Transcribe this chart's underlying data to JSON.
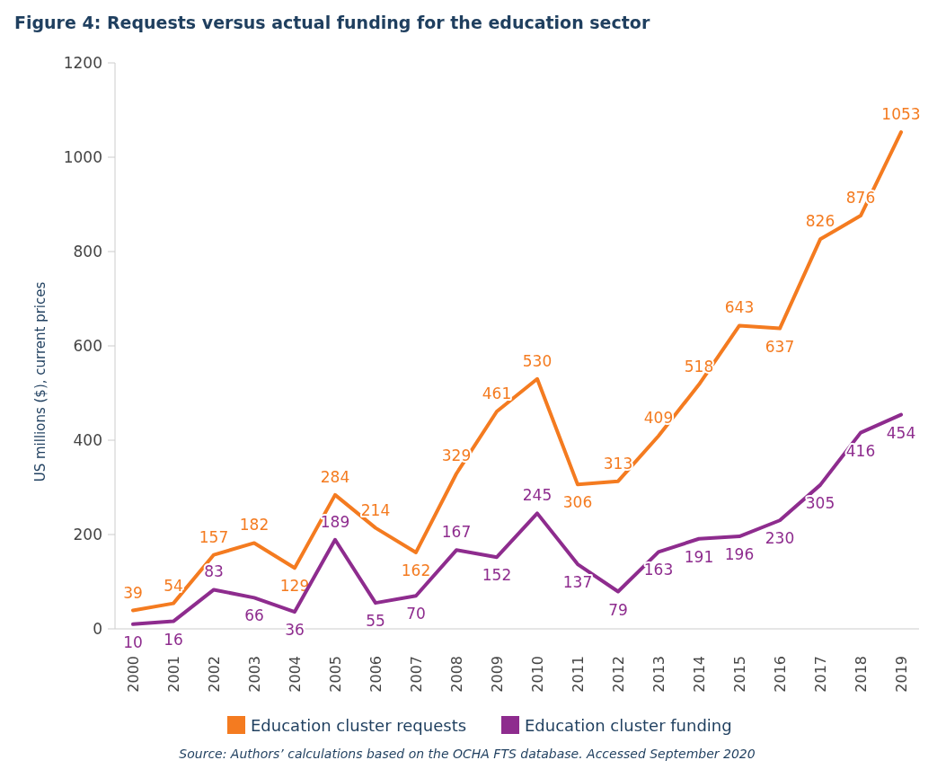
{
  "chart_data": {
    "type": "line",
    "title": "Figure 4: Requests versus actual funding for the education sector",
    "ylabel": "US millions ($), current prices",
    "categories": [
      "2000",
      "2001",
      "2002",
      "2003",
      "2004",
      "2005",
      "2006",
      "2007",
      "2008",
      "2009",
      "2010",
      "2011",
      "2012",
      "2013",
      "2014",
      "2015",
      "2016",
      "2017",
      "2018",
      "2019"
    ],
    "series": [
      {
        "name": "Education cluster requests",
        "color": "#f47b20",
        "values": [
          39,
          54,
          157,
          182,
          129,
          284,
          214,
          162,
          329,
          461,
          530,
          306,
          313,
          409,
          518,
          643,
          637,
          826,
          876,
          1053
        ]
      },
      {
        "name": "Education cluster funding",
        "color": "#8e2c8e",
        "values": [
          10,
          16,
          83,
          66,
          36,
          189,
          55,
          70,
          167,
          152,
          245,
          137,
          79,
          163,
          191,
          196,
          230,
          305,
          416,
          454
        ]
      }
    ],
    "ylim": [
      0,
      1200
    ],
    "yticks": [
      0,
      200,
      400,
      600,
      800,
      1000,
      1200
    ],
    "grid": false,
    "legend": "bottom",
    "data_labels": true,
    "marker": "none",
    "line_style": "solid",
    "annotations": [
      "Source: Authors’ calculations based on the OCHA FTS database. Accessed September 2020"
    ]
  }
}
